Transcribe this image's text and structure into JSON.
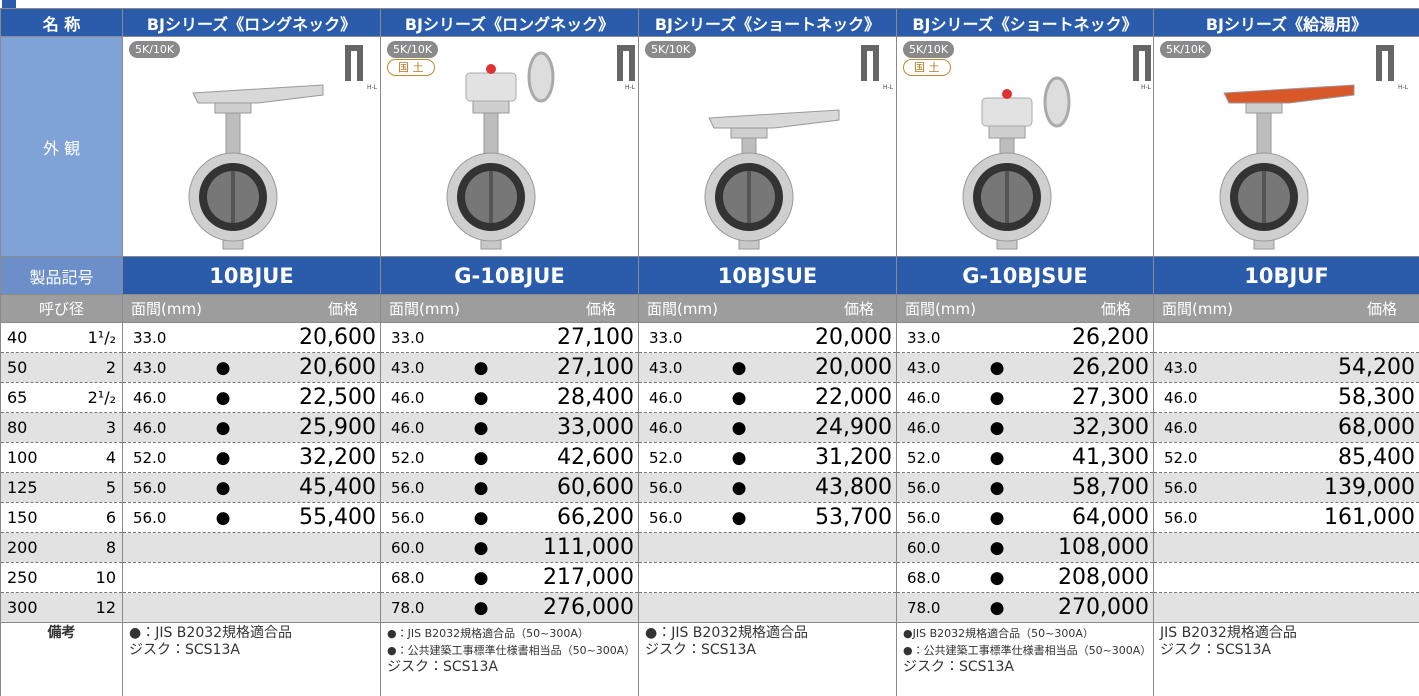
{
  "header": {
    "label": "名 称",
    "products": [
      "BJシリーズ《ロングネック》",
      "BJシリーズ《ロングネック》",
      "BJシリーズ《ショートネック》",
      "BJシリーズ《ショートネック》",
      "BJシリーズ《給湯用》"
    ]
  },
  "appearance": {
    "label": "外 観",
    "badges": [
      [
        "5K/10K"
      ],
      [
        "5K/10K",
        "国 土"
      ],
      [
        "5K/10K"
      ],
      [
        "5K/10K",
        "国 土"
      ],
      [
        "5K/10K"
      ]
    ]
  },
  "code": {
    "label": "製品記号",
    "values": [
      "10BJUE",
      "G-10BJUE",
      "10BJSUE",
      "G-10BJSUE",
      "10BJUF"
    ]
  },
  "subheader": {
    "label": "呼び径",
    "face": "面間(mm)",
    "price": "価格"
  },
  "rows": [
    {
      "size_a": "40",
      "size_b": "1¹/₂",
      "cells": [
        {
          "face": "33.0",
          "price": "20,600"
        },
        {
          "face": "33.0",
          "price": "27,100"
        },
        {
          "face": "33.0",
          "price": "20,000"
        },
        {
          "face": "33.0",
          "price": "26,200"
        },
        null
      ]
    },
    {
      "size_a": "50",
      "size_b": "2",
      "cells": [
        {
          "face": "43.0",
          "mark": "●",
          "price": "20,600"
        },
        {
          "face": "43.0",
          "mark": "●",
          "price": "27,100"
        },
        {
          "face": "43.0",
          "mark": "●",
          "price": "20,000"
        },
        {
          "face": "43.0",
          "mark": "●",
          "price": "26,200"
        },
        {
          "face": "43.0",
          "price": "54,200"
        }
      ]
    },
    {
      "size_a": "65",
      "size_b": "2¹/₂",
      "cells": [
        {
          "face": "46.0",
          "mark": "●",
          "price": "22,500"
        },
        {
          "face": "46.0",
          "mark": "●",
          "price": "28,400"
        },
        {
          "face": "46.0",
          "mark": "●",
          "price": "22,000"
        },
        {
          "face": "46.0",
          "mark": "●",
          "price": "27,300"
        },
        {
          "face": "46.0",
          "price": "58,300"
        }
      ]
    },
    {
      "size_a": "80",
      "size_b": "3",
      "cells": [
        {
          "face": "46.0",
          "mark": "●",
          "price": "25,900"
        },
        {
          "face": "46.0",
          "mark": "●",
          "price": "33,000"
        },
        {
          "face": "46.0",
          "mark": "●",
          "price": "24,900"
        },
        {
          "face": "46.0",
          "mark": "●",
          "price": "32,300"
        },
        {
          "face": "46.0",
          "price": "68,000"
        }
      ]
    },
    {
      "size_a": "100",
      "size_b": "4",
      "cells": [
        {
          "face": "52.0",
          "mark": "●",
          "price": "32,200"
        },
        {
          "face": "52.0",
          "mark": "●",
          "price": "42,600"
        },
        {
          "face": "52.0",
          "mark": "●",
          "price": "31,200"
        },
        {
          "face": "52.0",
          "mark": "●",
          "price": "41,300"
        },
        {
          "face": "52.0",
          "price": "85,400"
        }
      ]
    },
    {
      "size_a": "125",
      "size_b": "5",
      "cells": [
        {
          "face": "56.0",
          "mark": "●",
          "price": "45,400"
        },
        {
          "face": "56.0",
          "mark": "●",
          "price": "60,600"
        },
        {
          "face": "56.0",
          "mark": "●",
          "price": "43,800"
        },
        {
          "face": "56.0",
          "mark": "●",
          "price": "58,700"
        },
        {
          "face": "56.0",
          "price": "139,000"
        }
      ]
    },
    {
      "size_a": "150",
      "size_b": "6",
      "cells": [
        {
          "face": "56.0",
          "mark": "●",
          "price": "55,400"
        },
        {
          "face": "56.0",
          "mark": "●",
          "price": "66,200"
        },
        {
          "face": "56.0",
          "mark": "●",
          "price": "53,700"
        },
        {
          "face": "56.0",
          "mark": "●",
          "price": "64,000"
        },
        {
          "face": "56.0",
          "price": "161,000"
        }
      ]
    },
    {
      "size_a": "200",
      "size_b": "8",
      "cells": [
        null,
        {
          "face": "60.0",
          "mark": "●",
          "price": "111,000"
        },
        null,
        {
          "face": "60.0",
          "mark": "●",
          "price": "108,000"
        },
        null
      ]
    },
    {
      "size_a": "250",
      "size_b": "10",
      "cells": [
        null,
        {
          "face": "68.0",
          "mark": "●",
          "price": "217,000"
        },
        null,
        {
          "face": "68.0",
          "mark": "●",
          "price": "208,000"
        },
        null
      ]
    },
    {
      "size_a": "300",
      "size_b": "12",
      "cells": [
        null,
        {
          "face": "78.0",
          "mark": "●",
          "price": "276,000"
        },
        null,
        {
          "face": "78.0",
          "mark": "●",
          "price": "270,000"
        },
        null
      ]
    }
  ],
  "remarks": {
    "label": "備考",
    "notes": [
      [
        "●：JIS B2032規格適合品",
        "ジスク：SCS13A"
      ],
      [
        "●：JIS B2032規格適合品（50~300A）",
        "●：公共建築工事標準仕様書相当品（50~300A）",
        "ジスク：SCS13A"
      ],
      [
        "●：JIS B2032規格適合品",
        "ジスク：SCS13A"
      ],
      [
        "●JIS B2032規格適合品（50~300A）",
        "●：公共建築工事標準仕様書相当品（50~300A）",
        "ジスク：SCS13A"
      ],
      [
        "JIS B2032規格適合品",
        "ジスク：SCS13A"
      ]
    ]
  }
}
